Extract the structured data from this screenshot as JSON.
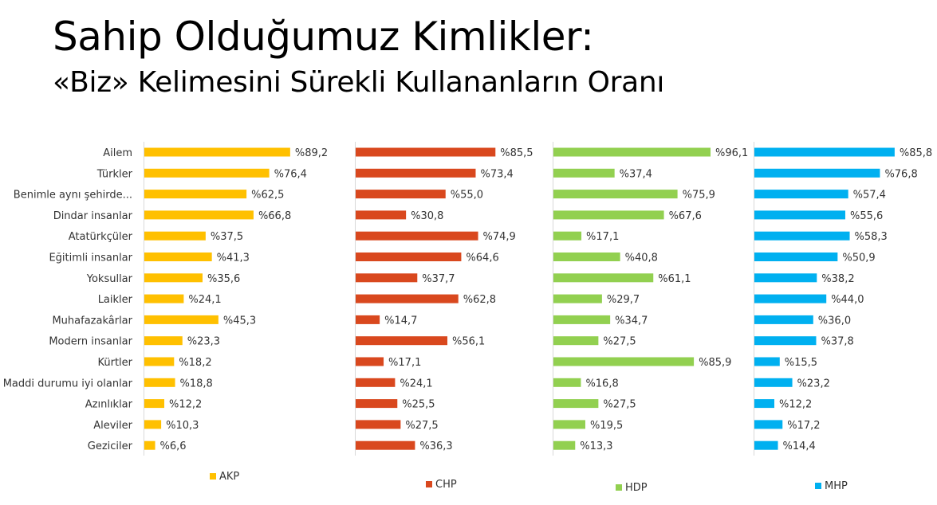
{
  "title": "Sahip Olduğumuz Kimlikler:",
  "subtitle": "«Biz» Kelimesini Sürekli Kullananların Oranı",
  "chart_data": {
    "type": "bar",
    "orientation": "horizontal",
    "categories": [
      "Ailem",
      "Türkler",
      "Benimle aynı şehirde...",
      "Dindar insanlar",
      "Atatürkçüler",
      "Eğitimli insanlar",
      "Yoksullar",
      "Laikler",
      "Muhafazakârlar",
      "Modern insanlar",
      "Kürtler",
      "Maddi durumu iyi olanlar",
      "Azınlıklar",
      "Aleviler",
      "Geziciler"
    ],
    "series": [
      {
        "name": "AKP",
        "color": "#FFC000",
        "values": [
          89.2,
          76.4,
          62.5,
          66.8,
          37.5,
          41.3,
          35.6,
          24.1,
          45.3,
          23.3,
          18.2,
          18.8,
          12.2,
          10.3,
          6.6
        ],
        "labels": [
          "%89,2",
          "%76,4",
          "%62,5",
          "%66,8",
          "%37,5",
          "%41,3",
          "%35,6",
          "%24,1",
          "%45,3",
          "%23,3",
          "%18,2",
          "%18,8",
          "%12,2",
          "%10,3",
          "%6,6"
        ]
      },
      {
        "name": "CHP",
        "color": "#D9481E",
        "values": [
          85.5,
          73.4,
          55.0,
          30.8,
          74.9,
          64.6,
          37.7,
          62.8,
          14.7,
          56.1,
          17.1,
          24.1,
          25.5,
          27.5,
          36.3
        ],
        "labels": [
          "%85,5",
          "%73,4",
          "%55,0",
          "%30,8",
          "%74,9",
          "%64,6",
          "%37,7",
          "%62,8",
          "%14,7",
          "%56,1",
          "%17,1",
          "%24,1",
          "%25,5",
          "%27,5",
          "%36,3"
        ]
      },
      {
        "name": "HDP",
        "color": "#92D050",
        "values": [
          96.1,
          37.4,
          75.9,
          67.6,
          17.1,
          40.8,
          61.1,
          29.7,
          34.7,
          27.5,
          85.9,
          16.8,
          27.5,
          19.5,
          13.3
        ],
        "labels": [
          "%96,1",
          "%37,4",
          "%75,9",
          "%67,6",
          "%17,1",
          "%40,8",
          "%61,1",
          "%29,7",
          "%34,7",
          "%27,5",
          "%85,9",
          "%16,8",
          "%27,5",
          "%19,5",
          "%13,3"
        ]
      },
      {
        "name": "MHP",
        "color": "#00B0F0",
        "values": [
          85.8,
          76.8,
          57.4,
          55.6,
          58.3,
          50.9,
          38.2,
          44.0,
          36.0,
          37.8,
          15.5,
          23.2,
          12.2,
          17.2,
          14.4
        ],
        "labels": [
          "%85,8",
          "%76,8",
          "%57,4",
          "%55,6",
          "%58,3",
          "%50,9",
          "%38,2",
          "%44,0",
          "%36,0",
          "%37,8",
          "%15,5",
          "%23,2",
          "%12,2",
          "%17,2",
          "%14,4"
        ]
      }
    ],
    "legend_position": "bottom",
    "grid": false
  }
}
